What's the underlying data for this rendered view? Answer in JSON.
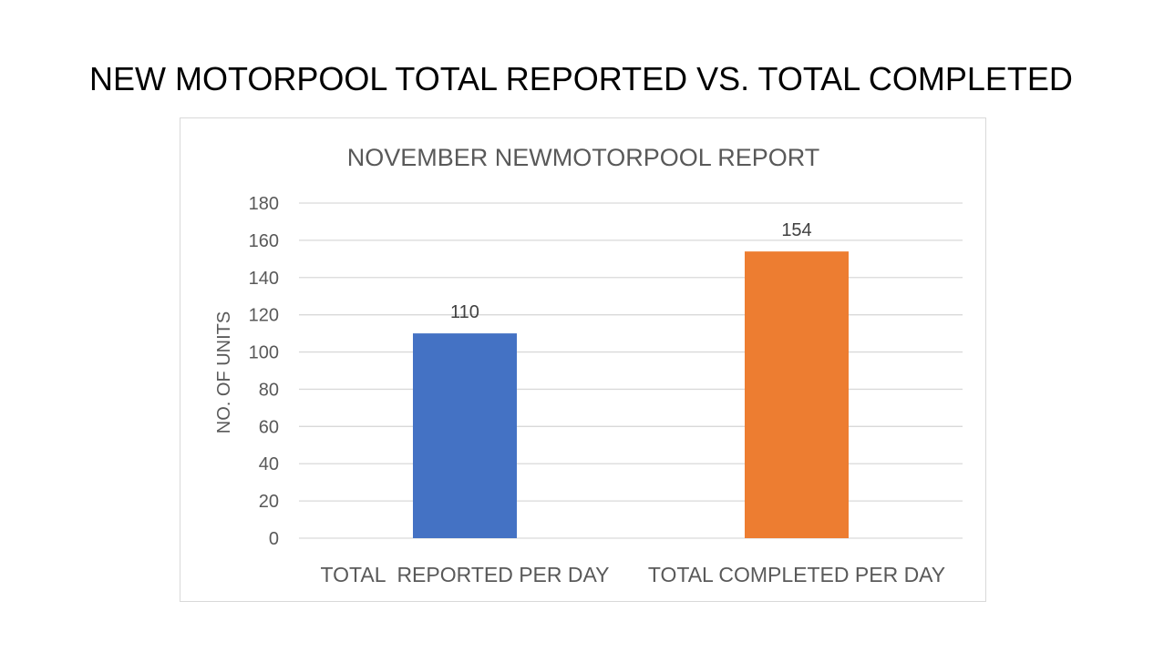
{
  "slide": {
    "title": "NEW MOTORPOOL TOTAL REPORTED VS. TOTAL COMPLETED"
  },
  "chart_data": {
    "type": "bar",
    "title": "NOVEMBER NEWMOTORPOOL  REPORT",
    "xlabel": "",
    "ylabel": "NO. OF UNITS",
    "categories": [
      "TOTAL  REPORTED PER DAY",
      "TOTAL COMPLETED PER DAY"
    ],
    "values": [
      110,
      154
    ],
    "data_labels": [
      "110",
      "154"
    ],
    "bar_colors": [
      "#4472c4",
      "#ed7d31"
    ],
    "ylim": [
      0,
      180
    ],
    "yticks": [
      0,
      20,
      40,
      60,
      80,
      100,
      120,
      140,
      160,
      180
    ],
    "grid": true,
    "legend": "none"
  }
}
